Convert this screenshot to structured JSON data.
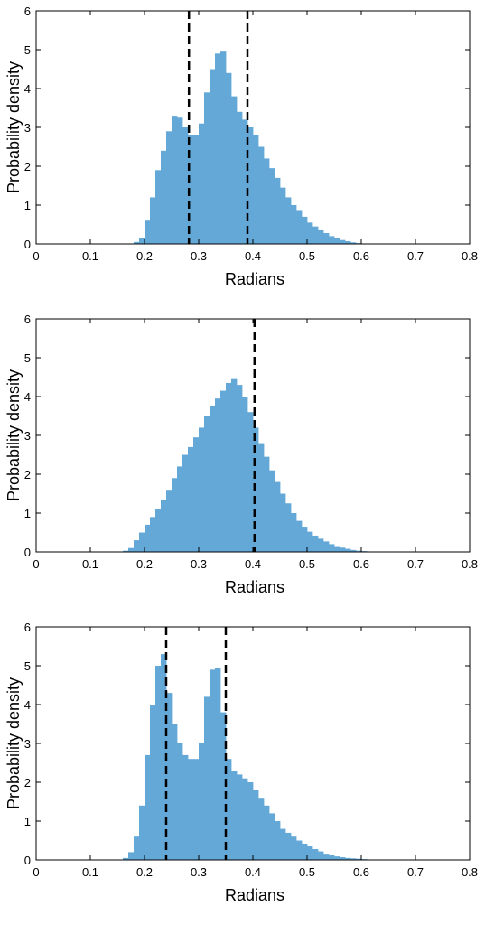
{
  "chart_data": [
    {
      "type": "histogram",
      "xlabel": "Radians",
      "ylabel": "Probability density",
      "xlim": [
        0,
        0.8
      ],
      "ylim": [
        0,
        6
      ],
      "xticks": [
        "0",
        "0.1",
        "0.2",
        "0.3",
        "0.4",
        "0.5",
        "0.6",
        "0.7",
        "0.8"
      ],
      "yticks": [
        "0",
        "1",
        "2",
        "3",
        "4",
        "5",
        "6"
      ],
      "bar_color": "#64a8d8",
      "bin_start": 0.18,
      "bin_width": 0.01,
      "values": [
        0.05,
        0.15,
        0.6,
        1.2,
        1.9,
        2.4,
        2.9,
        3.3,
        3.25,
        3.0,
        2.8,
        2.8,
        3.1,
        3.9,
        4.5,
        4.9,
        4.95,
        4.4,
        3.8,
        3.4,
        3.2,
        3.0,
        2.8,
        2.5,
        2.2,
        1.95,
        1.7,
        1.45,
        1.2,
        1.0,
        0.85,
        0.7,
        0.55,
        0.45,
        0.35,
        0.28,
        0.2,
        0.14,
        0.1,
        0.07,
        0.04,
        0.02
      ],
      "dashed_lines_x": [
        0.282,
        0.39
      ]
    },
    {
      "type": "histogram",
      "xlabel": "Radians",
      "ylabel": "Probability density",
      "xlim": [
        0,
        0.8
      ],
      "ylim": [
        0,
        6
      ],
      "xticks": [
        "0",
        "0.1",
        "0.2",
        "0.3",
        "0.4",
        "0.5",
        "0.6",
        "0.7",
        "0.8"
      ],
      "yticks": [
        "0",
        "1",
        "2",
        "3",
        "4",
        "5",
        "6"
      ],
      "bar_color": "#64a8d8",
      "bin_start": 0.16,
      "bin_width": 0.01,
      "values": [
        0.03,
        0.1,
        0.3,
        0.5,
        0.7,
        0.9,
        1.1,
        1.35,
        1.6,
        1.9,
        2.2,
        2.5,
        2.7,
        2.95,
        3.2,
        3.5,
        3.75,
        3.95,
        4.15,
        4.35,
        4.45,
        4.3,
        4.0,
        3.6,
        3.2,
        2.8,
        2.45,
        2.1,
        1.8,
        1.5,
        1.25,
        1.0,
        0.8,
        0.65,
        0.52,
        0.42,
        0.34,
        0.27,
        0.2,
        0.15,
        0.11,
        0.08,
        0.05,
        0.03,
        0.02,
        0.01,
        0.005,
        0.003
      ],
      "dashed_lines_x": [
        0.403
      ]
    },
    {
      "type": "histogram",
      "xlabel": "Radians",
      "ylabel": "Probability density",
      "xlim": [
        0,
        0.8
      ],
      "ylim": [
        0,
        6
      ],
      "xticks": [
        "0",
        "0.1",
        "0.2",
        "0.3",
        "0.4",
        "0.5",
        "0.6",
        "0.7",
        "0.8"
      ],
      "yticks": [
        "0",
        "1",
        "2",
        "3",
        "4",
        "5",
        "6"
      ],
      "bar_color": "#64a8d8",
      "bin_start": 0.16,
      "bin_width": 0.01,
      "values": [
        0.05,
        0.2,
        0.6,
        1.4,
        2.7,
        4.0,
        5.0,
        5.3,
        4.3,
        3.5,
        3.0,
        2.7,
        2.6,
        2.6,
        3.0,
        4.2,
        4.9,
        4.95,
        3.8,
        2.6,
        2.3,
        2.2,
        2.1,
        2.0,
        1.8,
        1.6,
        1.4,
        1.2,
        1.0,
        0.8,
        0.7,
        0.6,
        0.5,
        0.42,
        0.35,
        0.28,
        0.22,
        0.16,
        0.12,
        0.09,
        0.07,
        0.05,
        0.04,
        0.03,
        0.02,
        0.01,
        0.005,
        0.003,
        0.002,
        0.001
      ],
      "dashed_lines_x": [
        0.24,
        0.35
      ]
    }
  ]
}
